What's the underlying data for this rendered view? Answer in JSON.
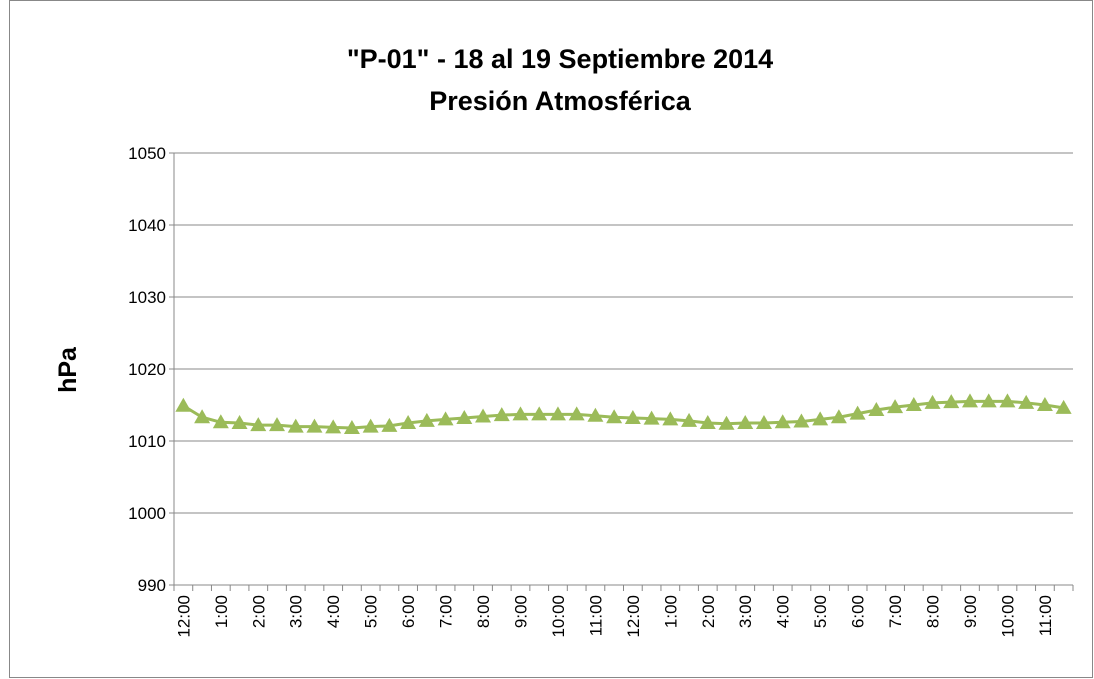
{
  "chart_data": {
    "type": "line",
    "title": [
      "\"P-01\" - 18 al 19 Septiembre 2014",
      "Presión Atmosférica"
    ],
    "y_label": "hPa",
    "categories": [
      "12:00",
      null,
      "1:00",
      null,
      "2:00",
      null,
      "3:00",
      null,
      "4:00",
      null,
      "5:00",
      null,
      "6:00",
      null,
      "7:00",
      null,
      "8:00",
      null,
      "9:00",
      null,
      "10:00",
      null,
      "11:00",
      null,
      "12:00",
      null,
      "1:00",
      null,
      "2:00",
      null,
      "3:00",
      null,
      "4:00",
      null,
      "5:00",
      null,
      "6:00",
      null,
      "7:00",
      null,
      "8:00",
      null,
      "9:00",
      null,
      "10:00",
      null,
      "11:00",
      null
    ],
    "series": [
      {
        "name": "Presión Atmosférica",
        "color": "#9bbb59",
        "values": [
          1014.9,
          1013.3,
          1012.6,
          1012.5,
          1012.2,
          1012.2,
          1012.0,
          1012.0,
          1011.9,
          1011.8,
          1012.0,
          1012.1,
          1012.5,
          1012.8,
          1013.0,
          1013.2,
          1013.4,
          1013.6,
          1013.7,
          1013.7,
          1013.7,
          1013.7,
          1013.5,
          1013.3,
          1013.2,
          1013.1,
          1013.0,
          1012.8,
          1012.5,
          1012.4,
          1012.5,
          1012.5,
          1012.6,
          1012.7,
          1013.0,
          1013.3,
          1013.8,
          1014.3,
          1014.7,
          1015.0,
          1015.3,
          1015.4,
          1015.5,
          1015.5,
          1015.5,
          1015.3,
          1015.0,
          1014.6
        ]
      }
    ],
    "ylim": [
      990,
      1050
    ],
    "yticks": [
      990,
      1000,
      1010,
      1020,
      1030,
      1040,
      1050
    ],
    "grid": true
  }
}
